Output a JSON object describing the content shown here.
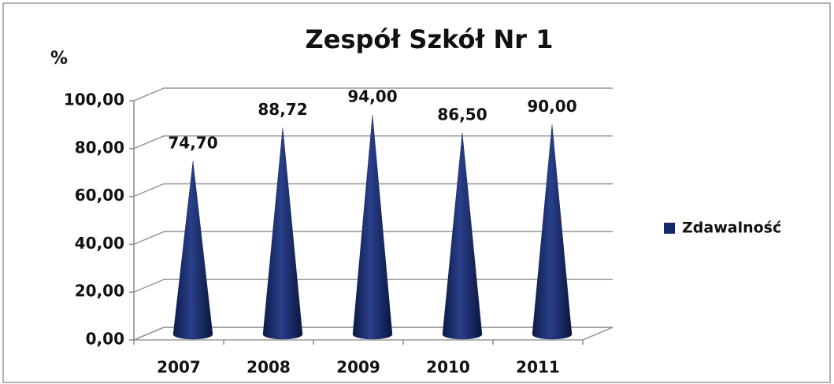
{
  "chart_data": {
    "type": "cone",
    "title": "Zespół Szkół Nr 1",
    "y_label": "%",
    "categories": [
      "2007",
      "2008",
      "2009",
      "2010",
      "2011"
    ],
    "series": [
      {
        "name": "Zdawalność",
        "color": "#15296a",
        "values": [
          74.7,
          88.72,
          94.0,
          86.5,
          90.0
        ],
        "value_labels": [
          "74,70",
          "88,72",
          "94,00",
          "86,50",
          "90,00"
        ]
      }
    ],
    "ylim": [
      0,
      100
    ],
    "yticks": [
      {
        "value": 0,
        "label": "0,00"
      },
      {
        "value": 20,
        "label": "20,00"
      },
      {
        "value": 40,
        "label": "40,00"
      },
      {
        "value": 60,
        "label": "60,00"
      },
      {
        "value": 80,
        "label": "80,00"
      },
      {
        "value": 100,
        "label": "100,00"
      }
    ],
    "grid": true
  }
}
